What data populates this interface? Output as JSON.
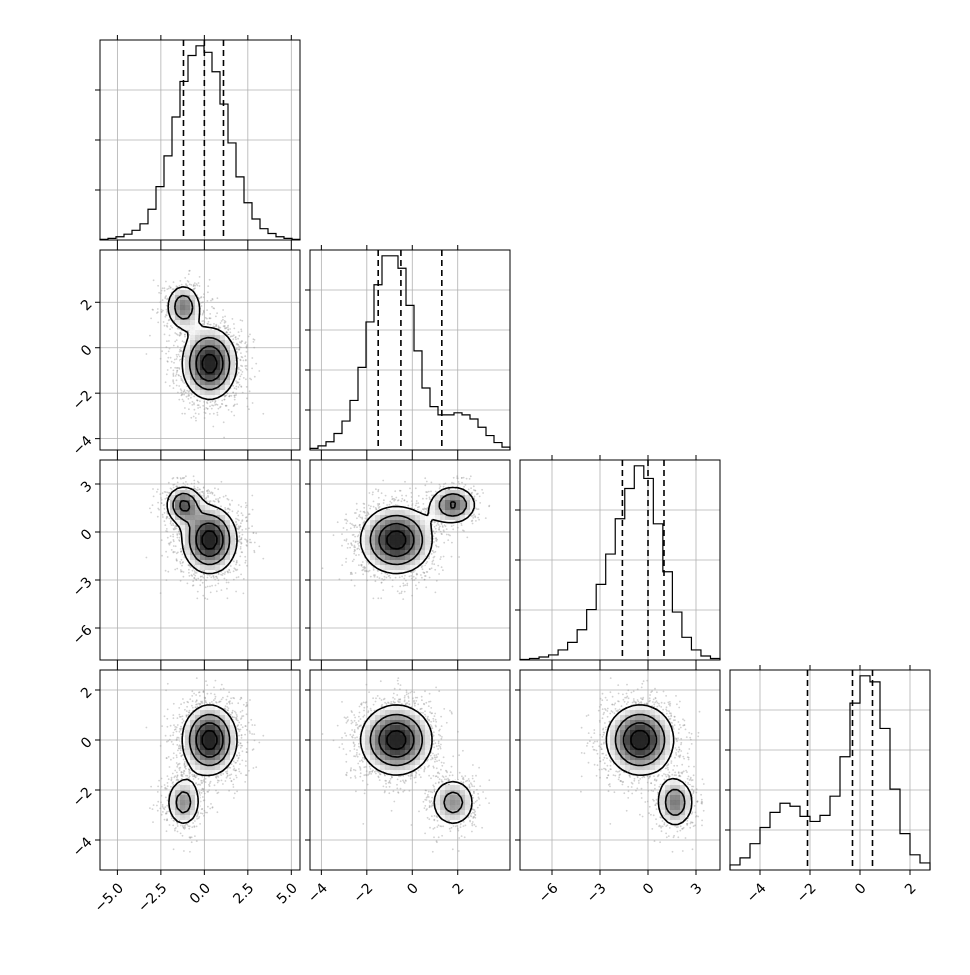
{
  "chart_data": {
    "type": "scatter",
    "kind": "corner-plot",
    "n_params": 4,
    "grid": true,
    "style": {
      "line_color": "#000000",
      "point_color": "#9a9a9a",
      "grid_color": "#b0b0b0",
      "density_color": "#000000"
    },
    "params": [
      {
        "range": [
          -6.0,
          5.5
        ],
        "ticks": [
          -5.0,
          -2.5,
          0.0,
          2.5,
          5.0
        ],
        "tick_labels": [
          "−5.0",
          "−2.5",
          "0.0",
          "2.5",
          "5.0"
        ],
        "quantiles": [
          -1.2,
          0.0,
          1.1
        ],
        "hist_grid_fracs": [
          0.25,
          0.5,
          0.75
        ],
        "hist_bins": [
          0.2,
          0.5,
          1.0,
          1.8,
          3.0,
          5.0,
          9.5,
          16.5,
          26.0,
          38.0,
          49.0,
          57.0,
          60.0,
          58.0,
          52.0,
          42.0,
          30.0,
          19.5,
          11.5,
          6.5,
          3.5,
          2.0,
          1.0,
          0.5,
          0.2
        ]
      },
      {
        "range": [
          -4.5,
          4.3
        ],
        "ticks": [
          -4,
          -2,
          0,
          2
        ],
        "tick_labels": [
          "−4",
          "−2",
          "0",
          "2"
        ],
        "quantiles": [
          -1.5,
          -0.5,
          1.3
        ],
        "hist_grid_fracs": [
          0.2,
          0.4,
          0.6,
          0.8
        ],
        "hist_bins": [
          0.4,
          1.0,
          2.0,
          4.0,
          7.0,
          12.0,
          20.0,
          31.0,
          40.0,
          47.0,
          47.0,
          44.0,
          35.0,
          24.0,
          15.0,
          10.5,
          8.5,
          8.5,
          9.0,
          8.5,
          7.5,
          5.5,
          3.5,
          1.8,
          0.7
        ]
      },
      {
        "range": [
          -8.0,
          4.5
        ],
        "ticks": [
          -6,
          -3,
          0,
          3
        ],
        "tick_labels": [
          "−6",
          "−3",
          "0",
          "3"
        ],
        "quantiles": [
          -1.6,
          0.0,
          1.0
        ],
        "hist_grid_fracs": [
          0.25,
          0.5,
          0.75
        ],
        "hist_bins": [
          0.1,
          0.3,
          0.6,
          1.0,
          2.0,
          3.5,
          6.0,
          10.0,
          15.0,
          21.0,
          28.0,
          34.0,
          38.5,
          36.0,
          27.0,
          17.5,
          9.5,
          4.5,
          2.0,
          0.8,
          0.3
        ]
      },
      {
        "range": [
          -5.2,
          2.8
        ],
        "ticks": [
          -4,
          -2,
          0,
          2
        ],
        "tick_labels": [
          "−4",
          "−2",
          "0",
          "2"
        ],
        "quantiles": [
          -2.1,
          -0.3,
          0.5
        ],
        "hist_grid_fracs": [
          0.2,
          0.4,
          0.6,
          0.8
        ],
        "hist_bins": [
          0.5,
          1.2,
          2.6,
          4.2,
          5.7,
          6.6,
          6.3,
          5.3,
          4.8,
          5.4,
          7.3,
          11.2,
          16.5,
          19.2,
          18.6,
          14.0,
          8.0,
          3.6,
          1.5,
          0.7
        ]
      }
    ],
    "mixture": [
      {
        "w": 0.78,
        "mean": [
          0.3,
          -0.7,
          -0.5,
          0.0
        ],
        "sd": [
          0.9,
          0.9,
          1.2,
          0.8
        ]
      },
      {
        "w": 0.22,
        "mean": [
          -1.2,
          1.8,
          1.7,
          -2.5
        ],
        "sd": [
          0.6,
          0.6,
          0.7,
          0.6
        ]
      }
    ],
    "n_points": 2400
  }
}
